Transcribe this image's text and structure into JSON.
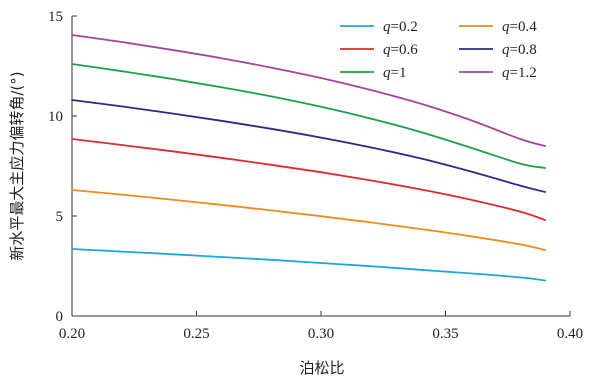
{
  "chart_data": {
    "type": "line",
    "title": "",
    "xlabel": "泊松比",
    "ylabel": "新水平最大主应力偏转角/(°)",
    "xlim": [
      0.2,
      0.4
    ],
    "ylim": [
      0,
      15
    ],
    "x_ticks": [
      "0.20",
      "0.25",
      "0.30",
      "0.35",
      "0.40"
    ],
    "y_ticks": [
      "0",
      "5",
      "10",
      "15"
    ],
    "grid": false,
    "legend": {
      "placement": "top-right",
      "columns": 2,
      "var": "q"
    },
    "x": [
      0.2,
      0.22,
      0.24,
      0.26,
      0.28,
      0.3,
      0.32,
      0.34,
      0.36,
      0.38,
      0.39
    ],
    "series": [
      {
        "name": "=0.2",
        "color": "#1aa7e0",
        "values": [
          3.35,
          3.22,
          3.09,
          2.95,
          2.81,
          2.65,
          2.49,
          2.31,
          2.13,
          1.93,
          1.78
        ]
      },
      {
        "name": "=0.4",
        "color": "#f08a1c",
        "values": [
          6.3,
          6.07,
          5.82,
          5.56,
          5.28,
          4.99,
          4.68,
          4.35,
          3.99,
          3.58,
          3.3
        ]
      },
      {
        "name": "=0.6",
        "color": "#e0282e",
        "values": [
          8.85,
          8.55,
          8.24,
          7.91,
          7.56,
          7.19,
          6.78,
          6.33,
          5.82,
          5.22,
          4.8
        ]
      },
      {
        "name": "=0.8",
        "color": "#2b2a85",
        "values": [
          10.8,
          10.48,
          10.13,
          9.76,
          9.36,
          8.92,
          8.43,
          7.88,
          7.23,
          6.52,
          6.2
        ]
      },
      {
        "name": "=1",
        "color": "#1aa04a",
        "values": [
          12.6,
          12.24,
          11.86,
          11.44,
          10.98,
          10.46,
          9.87,
          9.2,
          8.42,
          7.62,
          7.4
        ]
      },
      {
        "name": "=1.2",
        "color": "#a3469a",
        "values": [
          14.05,
          13.7,
          13.31,
          12.89,
          12.42,
          11.9,
          11.3,
          10.62,
          9.8,
          8.85,
          8.5
        ]
      }
    ]
  }
}
